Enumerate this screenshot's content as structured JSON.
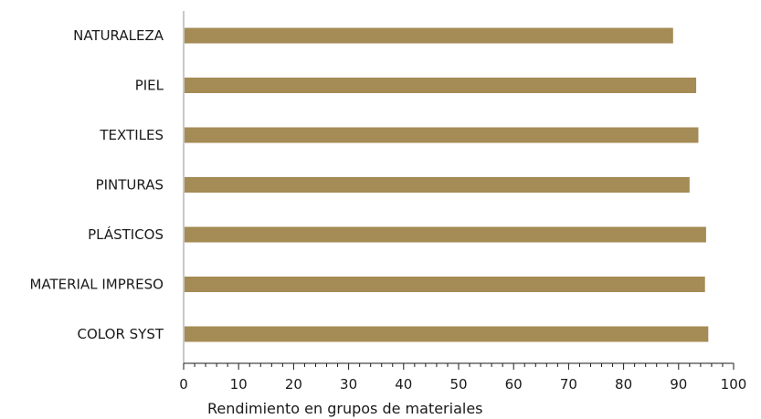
{
  "chart_data": {
    "type": "bar",
    "orientation": "horizontal",
    "categories": [
      "NATURALEZA",
      "PIEL",
      "TEXTILES",
      "PINTURAS",
      "PLÁSTICOS",
      "MATERIAL IMPRESO",
      "COLOR SYST"
    ],
    "values": [
      89,
      93.2,
      93.6,
      92,
      95,
      94.8,
      95.4
    ],
    "xlabel": "Rendimiento en grupos de materiales",
    "ylabel": "",
    "xlim": [
      0,
      100
    ],
    "xticks": [
      0,
      10,
      20,
      30,
      40,
      50,
      60,
      70,
      80,
      90,
      100
    ],
    "minor_ticks_per_major": 5,
    "grid": false,
    "legend": "none",
    "colors": {
      "bar": "#a58b55",
      "axis": "#c8c8c8",
      "text": "#1a1a1a"
    }
  }
}
